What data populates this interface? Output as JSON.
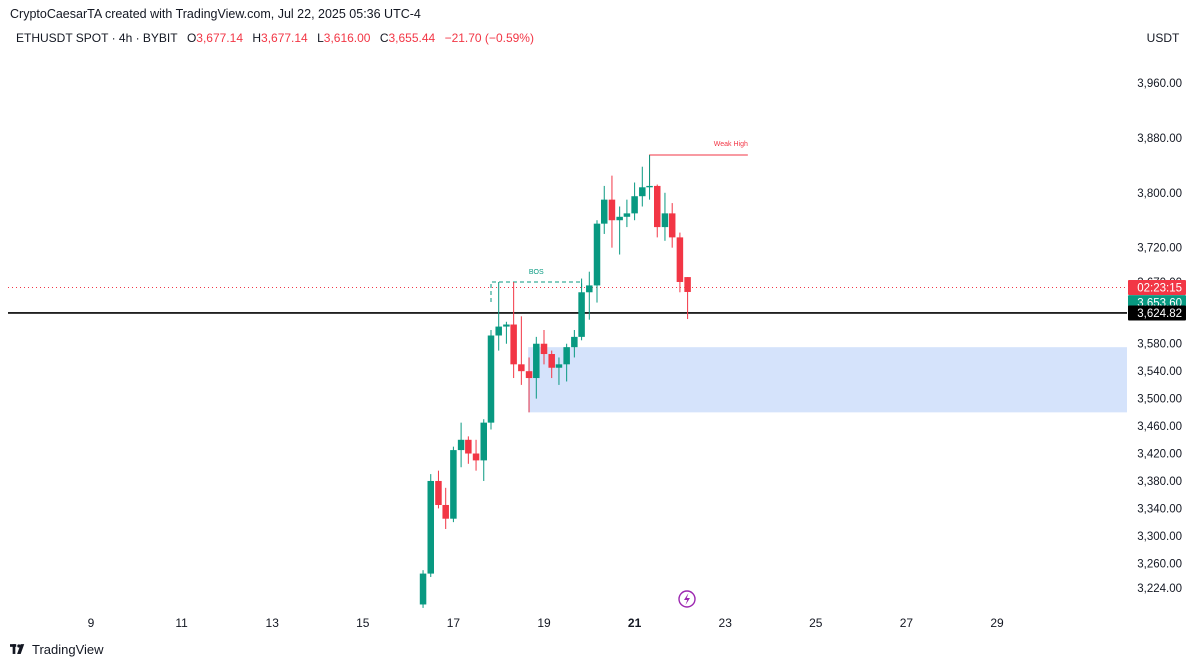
{
  "header": {
    "credit": "CryptoCaesarTA created with TradingView.com, Jul 22, 2025 05:36 UTC-4",
    "symbol": "ETHUSDT SPOT · 4h · BYBIT",
    "open_label": "O",
    "open": "3,677.14",
    "high_label": "H",
    "high": "3,677.14",
    "low_label": "L",
    "low": "3,616.00",
    "close_label": "C",
    "close": "3,655.44",
    "change": "−21.70 (−0.59%)",
    "currency": "USDT"
  },
  "footer": {
    "brand": "TradingView"
  },
  "colors": {
    "up": "#089981",
    "down": "#f23645",
    "zone": "#d5e3fb",
    "bos": "#089981",
    "weak_high": "#f23645",
    "support_line": "#000000",
    "price_line": "#f23645"
  },
  "chart_data": {
    "type": "candlestick",
    "symbol": "ETHUSDT SPOT",
    "interval": "4h",
    "exchange": "BYBIT",
    "x_ticks": [
      "9",
      "11",
      "13",
      "15",
      "17",
      "19",
      "21",
      "23",
      "25",
      "27",
      "29"
    ],
    "y_ticks": [
      "3,960.00",
      "3,880.00",
      "3,800.00",
      "3,720.00",
      "3,670.00",
      "3,580.00",
      "3,540.00",
      "3,500.00",
      "3,460.00",
      "3,420.00",
      "3,380.00",
      "3,340.00",
      "3,300.00",
      "3,260.00",
      "3,224.00"
    ],
    "y_tick_values": [
      3960,
      3880,
      3800,
      3720,
      3670,
      3580,
      3540,
      3500,
      3460,
      3420,
      3380,
      3340,
      3300,
      3260,
      3224
    ],
    "ylim": [
      3200,
      4000
    ],
    "candles": [
      {
        "day": 16.33,
        "o": 3200,
        "h": 3250,
        "l": 3195,
        "c": 3245
      },
      {
        "day": 16.5,
        "o": 3245,
        "h": 3390,
        "l": 3240,
        "c": 3380
      },
      {
        "day": 16.67,
        "o": 3380,
        "h": 3395,
        "l": 3340,
        "c": 3345
      },
      {
        "day": 16.83,
        "o": 3345,
        "h": 3370,
        "l": 3310,
        "c": 3325
      },
      {
        "day": 17.0,
        "o": 3325,
        "h": 3430,
        "l": 3320,
        "c": 3425
      },
      {
        "day": 17.17,
        "o": 3425,
        "h": 3465,
        "l": 3400,
        "c": 3440
      },
      {
        "day": 17.33,
        "o": 3440,
        "h": 3445,
        "l": 3405,
        "c": 3420
      },
      {
        "day": 17.5,
        "o": 3420,
        "h": 3440,
        "l": 3395,
        "c": 3410
      },
      {
        "day": 17.67,
        "o": 3410,
        "h": 3470,
        "l": 3380,
        "c": 3465
      },
      {
        "day": 17.83,
        "o": 3465,
        "h": 3600,
        "l": 3455,
        "c": 3592
      },
      {
        "day": 18.0,
        "o": 3592,
        "h": 3670,
        "l": 3570,
        "c": 3605
      },
      {
        "day": 18.17,
        "o": 3605,
        "h": 3612,
        "l": 3580,
        "c": 3608
      },
      {
        "day": 18.33,
        "o": 3608,
        "h": 3670,
        "l": 3530,
        "c": 3550
      },
      {
        "day": 18.5,
        "o": 3550,
        "h": 3620,
        "l": 3520,
        "c": 3540
      },
      {
        "day": 18.67,
        "o": 3540,
        "h": 3560,
        "l": 3480,
        "c": 3530
      },
      {
        "day": 18.83,
        "o": 3530,
        "h": 3590,
        "l": 3500,
        "c": 3580
      },
      {
        "day": 19.0,
        "o": 3580,
        "h": 3600,
        "l": 3550,
        "c": 3565
      },
      {
        "day": 19.17,
        "o": 3565,
        "h": 3570,
        "l": 3530,
        "c": 3545
      },
      {
        "day": 19.33,
        "o": 3545,
        "h": 3560,
        "l": 3520,
        "c": 3550
      },
      {
        "day": 19.5,
        "o": 3550,
        "h": 3580,
        "l": 3525,
        "c": 3575
      },
      {
        "day": 19.67,
        "o": 3575,
        "h": 3600,
        "l": 3560,
        "c": 3590
      },
      {
        "day": 19.83,
        "o": 3590,
        "h": 3675,
        "l": 3585,
        "c": 3655
      },
      {
        "day": 20.0,
        "o": 3655,
        "h": 3685,
        "l": 3615,
        "c": 3665
      },
      {
        "day": 20.17,
        "o": 3665,
        "h": 3760,
        "l": 3640,
        "c": 3755
      },
      {
        "day": 20.33,
        "o": 3755,
        "h": 3810,
        "l": 3740,
        "c": 3790
      },
      {
        "day": 20.5,
        "o": 3790,
        "h": 3825,
        "l": 3720,
        "c": 3760
      },
      {
        "day": 20.67,
        "o": 3760,
        "h": 3780,
        "l": 3710,
        "c": 3765
      },
      {
        "day": 20.83,
        "o": 3765,
        "h": 3790,
        "l": 3750,
        "c": 3770
      },
      {
        "day": 21.0,
        "o": 3770,
        "h": 3815,
        "l": 3760,
        "c": 3795
      },
      {
        "day": 21.17,
        "o": 3795,
        "h": 3838,
        "l": 3780,
        "c": 3808
      },
      {
        "day": 21.33,
        "o": 3808,
        "h": 3855,
        "l": 3790,
        "c": 3810
      },
      {
        "day": 21.5,
        "o": 3810,
        "h": 3812,
        "l": 3735,
        "c": 3750
      },
      {
        "day": 21.67,
        "o": 3750,
        "h": 3800,
        "l": 3730,
        "c": 3770
      },
      {
        "day": 21.83,
        "o": 3770,
        "h": 3785,
        "l": 3720,
        "c": 3735
      },
      {
        "day": 22.0,
        "o": 3735,
        "h": 3742,
        "l": 3655,
        "c": 3670
      },
      {
        "day": 22.17,
        "o": 3677.14,
        "h": 3677.14,
        "l": 3616.0,
        "c": 3655.44
      }
    ],
    "demand_zone": {
      "from_day": 18.65,
      "to_day": "right-edge",
      "top": 3575,
      "bottom": 3480
    },
    "support_level": 3624.82,
    "bos": {
      "label": "BOS",
      "from_day": 17.83,
      "to_day": 19.83,
      "price": 3670
    },
    "weak_high": {
      "label": "Weak High",
      "from_day": 21.33,
      "to_day": 23.5,
      "price": 3855
    },
    "price_labels": [
      {
        "text": "02:23:15",
        "price": 3662,
        "style": "down"
      },
      {
        "text": "3,653.60",
        "price": 3640,
        "style": "up"
      },
      {
        "text": "3,624.82",
        "price": 3624.82,
        "style": "black"
      }
    ]
  }
}
